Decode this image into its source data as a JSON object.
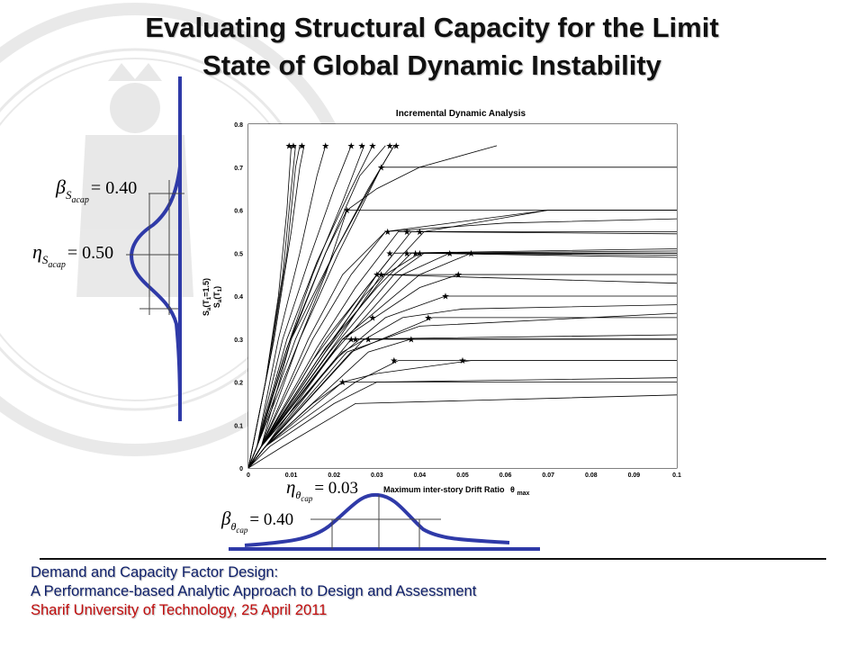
{
  "slide": {
    "title_line1": "Evaluating Structural Capacity for the Limit",
    "title_line2": "State of Global Dynamic Instability"
  },
  "footer": {
    "line1": "Demand and Capacity Factor Design:",
    "line2": "A Performance-based Analytic Approach to Design and Assessment",
    "line3": "Sharif University of Technology, 25 April 2011",
    "colors": {
      "primary": "#0e1f6a",
      "highlight": "#c10e0e"
    }
  },
  "annotations": {
    "beta_sa": {
      "symbol": "β",
      "sub": "S",
      "subsub": "acap",
      "eq": "= 0.40"
    },
    "eta_sa": {
      "symbol": "η",
      "sub": "S",
      "subsub": "acap",
      "eq": "= 0.50"
    },
    "eta_theta": {
      "symbol": "η",
      "sub": "θ",
      "subsub": "cap",
      "eq": "= 0.03"
    },
    "beta_theta": {
      "symbol": "β",
      "sub": "θ",
      "subsub": "cap",
      "eq": "= 0.40"
    }
  },
  "chart_data": {
    "type": "line",
    "title": "Incremental Dynamic Analysis",
    "xlabel": "Maximum inter-story Drift Ratio",
    "xlabel_symbol": "θ",
    "xlabel_symbol_sub": "max",
    "ylabel_line1": "S",
    "ylabel_line1_sub": "a",
    "ylabel_line1_rest": "(T",
    "ylabel_line1_sub2": "1",
    "ylabel_line1_tail": "=1.5)",
    "ylabel_line2": "S",
    "ylabel_line2_sub": "a",
    "ylabel_line2_rest": "(T",
    "ylabel_line2_sub2": "1",
    "ylabel_line2_tail": ")",
    "xlim": [
      0,
      0.1
    ],
    "ylim": [
      0,
      0.8
    ],
    "xticks": [
      0,
      0.01,
      0.02,
      0.03,
      0.04,
      0.05,
      0.06,
      0.07,
      0.08,
      0.09,
      0.1
    ],
    "xtick_labels": [
      "0",
      "0.01",
      "0.02",
      "0.03",
      "0.04",
      "0.05",
      "0.06",
      "0.07",
      "0.08",
      "0.09",
      "0.1"
    ],
    "yticks": [
      0,
      0.1,
      0.2,
      0.3,
      0.4,
      0.5,
      0.6,
      0.7,
      0.8
    ],
    "ytick_labels": [
      "0",
      "0.1",
      "0.2",
      "0.3",
      "0.4",
      "0.5",
      "0.6",
      "0.7",
      "0.8"
    ],
    "grid": true,
    "series": [
      {
        "values": [
          [
            0,
            0
          ],
          [
            0.001,
            0.05
          ],
          [
            0.004,
            0.2
          ],
          [
            0.007,
            0.4
          ],
          [
            0.009,
            0.6
          ],
          [
            0.01,
            0.75
          ]
        ]
      },
      {
        "values": [
          [
            0,
            0
          ],
          [
            0.001,
            0.05
          ],
          [
            0.004,
            0.2
          ],
          [
            0.008,
            0.45
          ],
          [
            0.01,
            0.65
          ],
          [
            0.011,
            0.75
          ]
        ]
      },
      {
        "values": [
          [
            0,
            0
          ],
          [
            0.001,
            0.05
          ],
          [
            0.005,
            0.25
          ],
          [
            0.009,
            0.5
          ],
          [
            0.011,
            0.7
          ],
          [
            0.012,
            0.75
          ]
        ]
      },
      {
        "values": [
          [
            0,
            0
          ],
          [
            0.001,
            0.05
          ],
          [
            0.006,
            0.3
          ],
          [
            0.01,
            0.55
          ],
          [
            0.012,
            0.7
          ],
          [
            0.013,
            0.75
          ]
        ]
      },
      {
        "values": [
          [
            0,
            0
          ],
          [
            0.002,
            0.05
          ],
          [
            0.007,
            0.3
          ],
          [
            0.012,
            0.5
          ],
          [
            0.016,
            0.68
          ],
          [
            0.018,
            0.75
          ]
        ]
      },
      {
        "values": [
          [
            0,
            0
          ],
          [
            0.002,
            0.05
          ],
          [
            0.008,
            0.3
          ],
          [
            0.014,
            0.48
          ],
          [
            0.02,
            0.65
          ],
          [
            0.024,
            0.75
          ]
        ]
      },
      {
        "values": [
          [
            0,
            0
          ],
          [
            0.002,
            0.05
          ],
          [
            0.008,
            0.25
          ],
          [
            0.015,
            0.45
          ],
          [
            0.022,
            0.62
          ],
          [
            0.027,
            0.75
          ]
        ]
      },
      {
        "values": [
          [
            0,
            0
          ],
          [
            0.002,
            0.05
          ],
          [
            0.009,
            0.3
          ],
          [
            0.016,
            0.48
          ],
          [
            0.024,
            0.65
          ],
          [
            0.029,
            0.75
          ]
        ]
      },
      {
        "values": [
          [
            0,
            0
          ],
          [
            0.002,
            0.05
          ],
          [
            0.009,
            0.28
          ],
          [
            0.018,
            0.5
          ],
          [
            0.026,
            0.68
          ],
          [
            0.032,
            0.75
          ]
        ]
      },
      {
        "values": [
          [
            0,
            0
          ],
          [
            0.003,
            0.05
          ],
          [
            0.01,
            0.3
          ],
          [
            0.02,
            0.5
          ],
          [
            0.028,
            0.65
          ],
          [
            0.034,
            0.75
          ]
        ]
      },
      {
        "values": [
          [
            0,
            0
          ],
          [
            0.002,
            0.05
          ],
          [
            0.01,
            0.3
          ],
          [
            0.018,
            0.5
          ],
          [
            0.023,
            0.6
          ],
          [
            0.03,
            0.65
          ],
          [
            0.04,
            0.7
          ],
          [
            0.058,
            0.75
          ]
        ]
      },
      {
        "values": [
          [
            0,
            0
          ],
          [
            0.002,
            0.05
          ],
          [
            0.011,
            0.3
          ],
          [
            0.02,
            0.5
          ],
          [
            0.031,
            0.7
          ],
          [
            0.034,
            0.75
          ]
        ]
      },
      {
        "values": [
          [
            0,
            0
          ],
          [
            0.003,
            0.05
          ],
          [
            0.012,
            0.3
          ],
          [
            0.021,
            0.5
          ],
          [
            0.031,
            0.7
          ],
          [
            0.1,
            0.7
          ]
        ]
      },
      {
        "values": [
          [
            0,
            0
          ],
          [
            0.002,
            0.05
          ],
          [
            0.01,
            0.25
          ],
          [
            0.018,
            0.45
          ],
          [
            0.023,
            0.6
          ],
          [
            0.1,
            0.6
          ]
        ]
      },
      {
        "values": [
          [
            0,
            0
          ],
          [
            0.003,
            0.05
          ],
          [
            0.014,
            0.3
          ],
          [
            0.022,
            0.45
          ],
          [
            0.032,
            0.55
          ],
          [
            0.07,
            0.6
          ],
          [
            0.1,
            0.6
          ]
        ]
      },
      {
        "values": [
          [
            0,
            0
          ],
          [
            0.003,
            0.05
          ],
          [
            0.015,
            0.3
          ],
          [
            0.024,
            0.45
          ],
          [
            0.032,
            0.55
          ],
          [
            0.06,
            0.57
          ],
          [
            0.1,
            0.58
          ]
        ]
      },
      {
        "values": [
          [
            0,
            0
          ],
          [
            0.003,
            0.05
          ],
          [
            0.016,
            0.28
          ],
          [
            0.025,
            0.42
          ],
          [
            0.035,
            0.55
          ],
          [
            0.1,
            0.55
          ]
        ]
      },
      {
        "values": [
          [
            0,
            0
          ],
          [
            0.003,
            0.05
          ],
          [
            0.015,
            0.25
          ],
          [
            0.026,
            0.4
          ],
          [
            0.038,
            0.55
          ],
          [
            0.1,
            0.545
          ]
        ]
      },
      {
        "values": [
          [
            0,
            0
          ],
          [
            0.003,
            0.05
          ],
          [
            0.016,
            0.25
          ],
          [
            0.027,
            0.4
          ],
          [
            0.041,
            0.55
          ],
          [
            0.07,
            0.6
          ],
          [
            0.1,
            0.6
          ]
        ]
      },
      {
        "values": [
          [
            0,
            0
          ],
          [
            0.003,
            0.05
          ],
          [
            0.018,
            0.3
          ],
          [
            0.03,
            0.45
          ],
          [
            0.034,
            0.5
          ],
          [
            0.1,
            0.51
          ]
        ]
      },
      {
        "values": [
          [
            0,
            0
          ],
          [
            0.003,
            0.05
          ],
          [
            0.018,
            0.28
          ],
          [
            0.03,
            0.42
          ],
          [
            0.038,
            0.5
          ],
          [
            0.1,
            0.5
          ]
        ]
      },
      {
        "values": [
          [
            0,
            0
          ],
          [
            0.003,
            0.05
          ],
          [
            0.018,
            0.27
          ],
          [
            0.032,
            0.45
          ],
          [
            0.04,
            0.5
          ],
          [
            0.1,
            0.505
          ]
        ]
      },
      {
        "values": [
          [
            0,
            0
          ],
          [
            0.003,
            0.05
          ],
          [
            0.019,
            0.27
          ],
          [
            0.034,
            0.45
          ],
          [
            0.041,
            0.5
          ],
          [
            0.1,
            0.49
          ]
        ]
      },
      {
        "values": [
          [
            0,
            0
          ],
          [
            0.003,
            0.05
          ],
          [
            0.02,
            0.27
          ],
          [
            0.036,
            0.45
          ],
          [
            0.047,
            0.5
          ],
          [
            0.1,
            0.495
          ]
        ]
      },
      {
        "values": [
          [
            0,
            0
          ],
          [
            0.003,
            0.05
          ],
          [
            0.022,
            0.3
          ],
          [
            0.04,
            0.45
          ],
          [
            0.052,
            0.5
          ],
          [
            0.1,
            0.5
          ]
        ]
      },
      {
        "values": [
          [
            0,
            0
          ],
          [
            0.003,
            0.05
          ],
          [
            0.02,
            0.3
          ],
          [
            0.03,
            0.45
          ],
          [
            0.1,
            0.45
          ]
        ]
      },
      {
        "values": [
          [
            0,
            0
          ],
          [
            0.003,
            0.05
          ],
          [
            0.021,
            0.3
          ],
          [
            0.031,
            0.45
          ],
          [
            0.1,
            0.43
          ]
        ]
      },
      {
        "values": [
          [
            0,
            0
          ],
          [
            0.003,
            0.05
          ],
          [
            0.022,
            0.3
          ],
          [
            0.04,
            0.42
          ],
          [
            0.049,
            0.45
          ],
          [
            0.1,
            0.45
          ]
        ]
      },
      {
        "values": [
          [
            0,
            0
          ],
          [
            0.003,
            0.05
          ],
          [
            0.02,
            0.25
          ],
          [
            0.032,
            0.35
          ],
          [
            0.046,
            0.4
          ],
          [
            0.1,
            0.4
          ]
        ]
      },
      {
        "values": [
          [
            0,
            0
          ],
          [
            0.003,
            0.05
          ],
          [
            0.022,
            0.27
          ],
          [
            0.036,
            0.35
          ],
          [
            0.05,
            0.37
          ],
          [
            0.1,
            0.38
          ]
        ]
      },
      {
        "values": [
          [
            0,
            0
          ],
          [
            0.004,
            0.05
          ],
          [
            0.023,
            0.27
          ],
          [
            0.04,
            0.33
          ],
          [
            0.1,
            0.36
          ]
        ]
      },
      {
        "values": [
          [
            0,
            0
          ],
          [
            0.004,
            0.05
          ],
          [
            0.024,
            0.27
          ],
          [
            0.043,
            0.35
          ],
          [
            0.1,
            0.35
          ]
        ]
      },
      {
        "values": [
          [
            0,
            0
          ],
          [
            0.004,
            0.05
          ],
          [
            0.022,
            0.3
          ],
          [
            0.1,
            0.3
          ]
        ]
      },
      {
        "values": [
          [
            0,
            0
          ],
          [
            0.004,
            0.05
          ],
          [
            0.024,
            0.3
          ],
          [
            0.1,
            0.31
          ]
        ]
      },
      {
        "values": [
          [
            0,
            0
          ],
          [
            0.004,
            0.05
          ],
          [
            0.027,
            0.3
          ],
          [
            0.1,
            0.3
          ]
        ]
      },
      {
        "values": [
          [
            0,
            0
          ],
          [
            0.004,
            0.05
          ],
          [
            0.028,
            0.27
          ],
          [
            0.038,
            0.3
          ],
          [
            0.1,
            0.3
          ]
        ]
      },
      {
        "values": [
          [
            0,
            0
          ],
          [
            0.004,
            0.05
          ],
          [
            0.025,
            0.2
          ],
          [
            0.035,
            0.25
          ],
          [
            0.1,
            0.25
          ]
        ]
      },
      {
        "values": [
          [
            0,
            0
          ],
          [
            0.004,
            0.05
          ],
          [
            0.022,
            0.2
          ],
          [
            0.03,
            0.22
          ],
          [
            0.052,
            0.25
          ],
          [
            0.1,
            0.25
          ]
        ]
      },
      {
        "values": [
          [
            0,
            0
          ],
          [
            0.004,
            0.05
          ],
          [
            0.015,
            0.15
          ],
          [
            0.022,
            0.2
          ],
          [
            0.1,
            0.2
          ]
        ]
      },
      {
        "values": [
          [
            0,
            0
          ],
          [
            0.005,
            0.05
          ],
          [
            0.02,
            0.15
          ],
          [
            0.03,
            0.2
          ],
          [
            0.1,
            0.21
          ]
        ]
      },
      {
        "values": [
          [
            0,
            0
          ],
          [
            0.008,
            0.05
          ],
          [
            0.025,
            0.15
          ],
          [
            0.1,
            0.17
          ]
        ]
      }
    ],
    "markers": [
      [
        0.0095,
        0.75
      ],
      [
        0.0105,
        0.75
      ],
      [
        0.0125,
        0.75
      ],
      [
        0.018,
        0.75
      ],
      [
        0.024,
        0.75
      ],
      [
        0.0265,
        0.75
      ],
      [
        0.029,
        0.75
      ],
      [
        0.033,
        0.75
      ],
      [
        0.0345,
        0.75
      ],
      [
        0.031,
        0.7
      ],
      [
        0.023,
        0.6
      ],
      [
        0.0325,
        0.55
      ],
      [
        0.037,
        0.55
      ],
      [
        0.04,
        0.55
      ],
      [
        0.033,
        0.5
      ],
      [
        0.037,
        0.5
      ],
      [
        0.039,
        0.5
      ],
      [
        0.04,
        0.5
      ],
      [
        0.047,
        0.5
      ],
      [
        0.052,
        0.5
      ],
      [
        0.03,
        0.45
      ],
      [
        0.031,
        0.45
      ],
      [
        0.049,
        0.45
      ],
      [
        0.046,
        0.4
      ],
      [
        0.029,
        0.35
      ],
      [
        0.042,
        0.35
      ],
      [
        0.024,
        0.3
      ],
      [
        0.025,
        0.3
      ],
      [
        0.028,
        0.3
      ],
      [
        0.038,
        0.3
      ],
      [
        0.034,
        0.25
      ],
      [
        0.05,
        0.25
      ],
      [
        0.022,
        0.2
      ]
    ],
    "marker_label": "★"
  }
}
